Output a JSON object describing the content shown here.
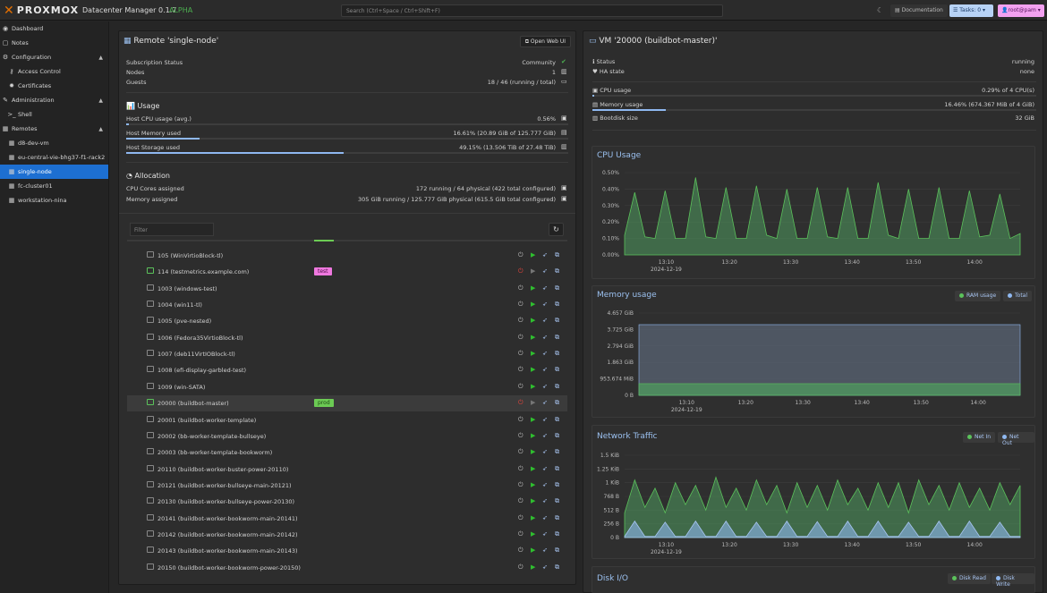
{
  "header": {
    "logo_text": "PROXMOX",
    "app_name": "Datacenter Manager 0.1.7",
    "release": "ALPHA",
    "search_placeholder": "Search (Ctrl+Space / Ctrl+Shift+F)",
    "documentation": "Documentation",
    "tasks": "Tasks: 0",
    "user": "root@pam"
  },
  "sidebar": [
    {
      "label": "Dashboard",
      "icon": "dashboard-icon",
      "indent": 0
    },
    {
      "label": "Notes",
      "icon": "notes-icon",
      "indent": 0
    },
    {
      "label": "Configuration",
      "icon": "cogs-icon",
      "indent": 0,
      "expanded": true
    },
    {
      "label": "Access Control",
      "icon": "key-icon",
      "indent": 1
    },
    {
      "label": "Certificates",
      "icon": "certificate-icon",
      "indent": 1
    },
    {
      "label": "Administration",
      "icon": "wrench-icon",
      "indent": 0,
      "expanded": true
    },
    {
      "label": "Shell",
      "icon": "terminal-icon",
      "indent": 1
    },
    {
      "label": "Remotes",
      "icon": "server-icon",
      "indent": 0,
      "expanded": true
    },
    {
      "label": "d8-dev-vm",
      "icon": "server-icon",
      "indent": 1
    },
    {
      "label": "eu-central-vie-bhg37-f1-rack2",
      "icon": "server-icon",
      "indent": 1
    },
    {
      "label": "single-node",
      "icon": "server-icon",
      "indent": 1,
      "selected": true
    },
    {
      "label": "fc-cluster01",
      "icon": "server-icon",
      "indent": 1
    },
    {
      "label": "workstation-nina",
      "icon": "server-icon",
      "indent": 1
    }
  ],
  "remote": {
    "title": "Remote 'single-node'",
    "open_web_ui": "Open Web UI",
    "status": [
      {
        "label": "Subscription Status",
        "value": "Community"
      },
      {
        "label": "Nodes",
        "value": "1"
      },
      {
        "label": "Guests",
        "value": "18 / 46 (running / total)"
      }
    ],
    "usage_title": "Usage",
    "usage": [
      {
        "label": "Host CPU usage (avg.)",
        "value": "0.56%",
        "fraction": 0.0056
      },
      {
        "label": "Host Memory used",
        "value": "16.61% (20.89 GiB of 125.777 GiB)",
        "fraction": 0.1661
      },
      {
        "label": "Host Storage used",
        "value": "49.15% (13.506 TiB of 27.48 TiB)",
        "fraction": 0.4915
      }
    ],
    "allocation_title": "Allocation",
    "allocation": [
      {
        "label": "CPU Cores assigned",
        "value": "172 running / 64 physical (422 total configured)"
      },
      {
        "label": "Memory assigned",
        "value": "305 GiB running / 125.777 GiB physical (615.5 GiB total configured)"
      }
    ],
    "filter_placeholder": "Filter",
    "guests": [
      {
        "name": "105 (WinVirtioBlock-tl)",
        "running": false,
        "tag": ""
      },
      {
        "name": "114 (testmetrics.example.com)",
        "running": true,
        "tag": "test"
      },
      {
        "name": "1003 (windows-test)",
        "running": false,
        "tag": ""
      },
      {
        "name": "1004 (win11-tl)",
        "running": false,
        "tag": ""
      },
      {
        "name": "1005 (pve-nested)",
        "running": false,
        "tag": ""
      },
      {
        "name": "1006 (Fedora35VirtioBlock-tl)",
        "running": false,
        "tag": ""
      },
      {
        "name": "1007 (deb11VirtIOBlock-tl)",
        "running": false,
        "tag": ""
      },
      {
        "name": "1008 (efi-display-garbled-test)",
        "running": false,
        "tag": ""
      },
      {
        "name": "1009 (win-SATA)",
        "running": false,
        "tag": ""
      },
      {
        "name": "20000 (buildbot-master)",
        "running": true,
        "tag": "prod",
        "highlight": true
      },
      {
        "name": "20001 (buildbot-worker-template)",
        "running": false,
        "tag": ""
      },
      {
        "name": "20002 (bb-worker-template-bullseye)",
        "running": false,
        "tag": ""
      },
      {
        "name": "20003 (bb-worker-template-bookworm)",
        "running": false,
        "tag": ""
      },
      {
        "name": "20110 (buildbot-worker-buster-power-20110)",
        "running": false,
        "tag": ""
      },
      {
        "name": "20121 (buildbot-worker-bullseye-main-20121)",
        "running": false,
        "tag": ""
      },
      {
        "name": "20130 (buildbot-worker-bullseye-power-20130)",
        "running": false,
        "tag": ""
      },
      {
        "name": "20141 (buildbot-worker-bookworm-main-20141)",
        "running": false,
        "tag": ""
      },
      {
        "name": "20142 (buildbot-worker-bookworm-main-20142)",
        "running": false,
        "tag": ""
      },
      {
        "name": "20143 (buildbot-worker-bookworm-main-20143)",
        "running": false,
        "tag": ""
      },
      {
        "name": "20150 (buildbot-worker-bookworm-power-20150)",
        "running": false,
        "tag": ""
      }
    ]
  },
  "vm": {
    "title": "VM '20000 (buildbot-master)'",
    "info": [
      {
        "label": "Status",
        "value": "running",
        "icon": "info-icon"
      },
      {
        "label": "HA state",
        "value": "none",
        "icon": "heartbeat-icon"
      }
    ],
    "usage": [
      {
        "label": "CPU usage",
        "value": "0.29% of 4 CPU(s)",
        "fraction": 0.0029,
        "icon": "cpu-icon"
      },
      {
        "label": "Memory usage",
        "value": "16.46% (674.367 MiB of 4 GiB)",
        "fraction": 0.1646,
        "icon": "memory-icon"
      },
      {
        "label": "Bootdisk size",
        "value": "32 GiB",
        "icon": "database-icon"
      }
    ]
  },
  "colors": {
    "accent": "#1d6fd1",
    "running": "#5bc25b",
    "series_green": "#4f9b5f",
    "series_blue": "#8fb8f0"
  },
  "chart_data": [
    {
      "type": "area",
      "title": "CPU Usage",
      "y_ticks": [
        "0.50%",
        "0.40%",
        "0.30%",
        "0.20%",
        "0.10%",
        "0.00%"
      ],
      "ylim": [
        0,
        0.5
      ],
      "x_ticks": [
        "13:10",
        "13:20",
        "13:30",
        "13:40",
        "13:50",
        "14:00"
      ],
      "x_date": "2024-12-19",
      "series": [
        {
          "values": [
            0.12,
            0.38,
            0.11,
            0.1,
            0.39,
            0.1,
            0.1,
            0.47,
            0.11,
            0.1,
            0.41,
            0.1,
            0.1,
            0.42,
            0.12,
            0.1,
            0.4,
            0.1,
            0.1,
            0.41,
            0.11,
            0.1,
            0.41,
            0.1,
            0.1,
            0.44,
            0.12,
            0.1,
            0.4,
            0.1,
            0.1,
            0.41,
            0.1,
            0.1,
            0.39,
            0.11,
            0.12,
            0.37,
            0.1,
            0.13
          ]
        }
      ]
    },
    {
      "type": "area",
      "title": "Memory usage",
      "y_ticks": [
        "4.657 GiB",
        "3.725 GiB",
        "2.794 GiB",
        "1.863 GiB",
        "953.674 MiB",
        "0 B"
      ],
      "ylim": [
        0,
        4.657
      ],
      "x_ticks": [
        "13:10",
        "13:20",
        "13:30",
        "13:40",
        "13:50",
        "14:00"
      ],
      "x_date": "2024-12-19",
      "legend": [
        "RAM usage",
        "Total"
      ],
      "series": [
        {
          "name": "RAM usage",
          "values": [
            0.66,
            0.66
          ]
        },
        {
          "name": "Total",
          "values": [
            4.0,
            4.0
          ]
        }
      ]
    },
    {
      "type": "area",
      "title": "Network Traffic",
      "y_ticks": [
        "1.5 KiB",
        "1.25 KiB",
        "1 KiB",
        "768 B",
        "512 B",
        "256 B",
        "0 B"
      ],
      "ylim": [
        0,
        1.5
      ],
      "x_ticks": [
        "13:10",
        "13:20",
        "13:30",
        "13:40",
        "13:50",
        "14:00"
      ],
      "x_date": "2024-12-19",
      "legend": [
        "Net In",
        "Net Out"
      ],
      "series": [
        {
          "name": "Net In",
          "values": [
            0.45,
            1.05,
            0.55,
            0.9,
            0.45,
            1.0,
            0.6,
            0.95,
            0.5,
            1.1,
            0.55,
            0.9,
            0.5,
            1.05,
            0.6,
            0.95,
            0.45,
            1.0,
            0.55,
            0.95,
            0.5,
            1.05,
            0.6,
            0.9,
            0.5,
            1.0,
            0.55,
            1.0,
            0.45,
            1.05,
            0.6,
            0.95,
            0.5,
            1.0,
            0.55,
            0.9,
            0.5,
            1.0,
            0.6,
            0.95
          ]
        },
        {
          "name": "Net Out",
          "values": [
            0.02,
            0.3,
            0.02,
            0.02,
            0.28,
            0.02,
            0.02,
            0.3,
            0.02,
            0.02,
            0.3,
            0.02,
            0.02,
            0.28,
            0.02,
            0.02,
            0.3,
            0.02,
            0.02,
            0.29,
            0.02,
            0.02,
            0.3,
            0.02,
            0.02,
            0.3,
            0.02,
            0.02,
            0.28,
            0.02,
            0.02,
            0.3,
            0.02,
            0.02,
            0.3,
            0.02,
            0.02,
            0.28,
            0.02,
            0.02
          ]
        }
      ]
    },
    {
      "type": "area",
      "title": "Disk I/O",
      "legend": [
        "Disk Read",
        "Disk Write"
      ]
    }
  ]
}
